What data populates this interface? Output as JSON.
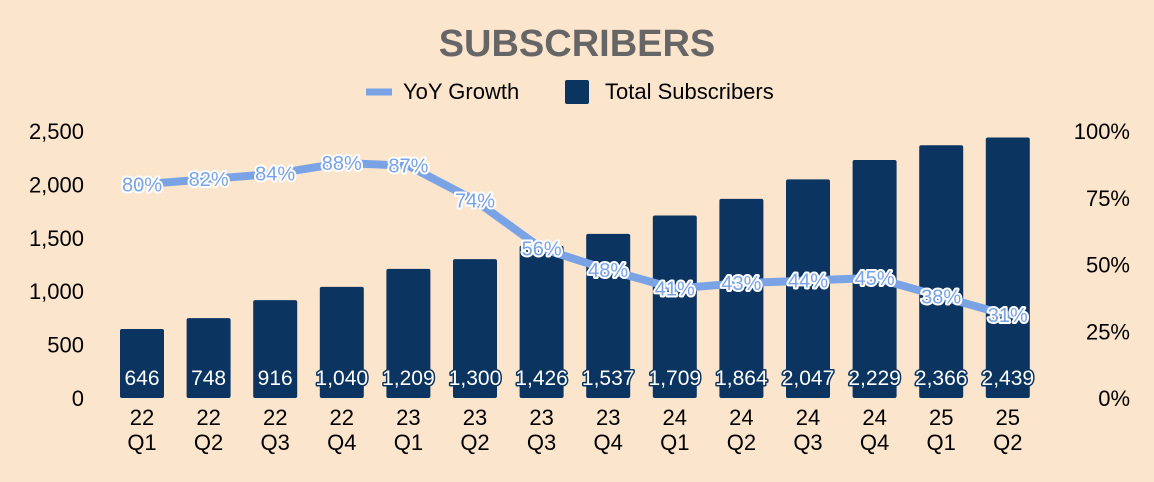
{
  "chart_data": {
    "type": "bar",
    "title": "SUBSCRIBERS",
    "categories": [
      [
        "22",
        "Q1"
      ],
      [
        "22",
        "Q2"
      ],
      [
        "22",
        "Q3"
      ],
      [
        "22",
        "Q4"
      ],
      [
        "23",
        "Q1"
      ],
      [
        "23",
        "Q2"
      ],
      [
        "23",
        "Q3"
      ],
      [
        "23",
        "Q4"
      ],
      [
        "24",
        "Q1"
      ],
      [
        "24",
        "Q2"
      ],
      [
        "24",
        "Q3"
      ],
      [
        "24",
        "Q4"
      ],
      [
        "25",
        "Q1"
      ],
      [
        "25",
        "Q2"
      ]
    ],
    "series": [
      {
        "name": "Total Subscribers",
        "type": "bar",
        "axis": "left",
        "color": "#0b3460",
        "values": [
          646,
          748,
          916,
          1040,
          1209,
          1300,
          1426,
          1537,
          1709,
          1864,
          2047,
          2229,
          2366,
          2439
        ],
        "labels": [
          "646",
          "748",
          "916",
          "1,040",
          "1,209",
          "1,300",
          "1,426",
          "1,537",
          "1,709",
          "1,864",
          "2,047",
          "2,229",
          "2,366",
          "2,439"
        ]
      },
      {
        "name": "YoY Growth",
        "type": "line",
        "axis": "right",
        "color": "#7aa3e6",
        "values": [
          80,
          82,
          84,
          88,
          87,
          74,
          56,
          48,
          41,
          43,
          44,
          45,
          38,
          31
        ],
        "labels": [
          "80%",
          "82%",
          "84%",
          "88%",
          "87%",
          "74%",
          "56%",
          "48%",
          "41%",
          "43%",
          "44%",
          "45%",
          "38%",
          "31%"
        ]
      }
    ],
    "y_left": {
      "ylim": [
        0,
        2500
      ],
      "ticks": [
        "0",
        "500",
        "1,000",
        "1,500",
        "2,000",
        "2,500"
      ],
      "tick_values": [
        0,
        500,
        1000,
        1500,
        2000,
        2500
      ]
    },
    "y_right": {
      "ylim": [
        0,
        100
      ],
      "ticks": [
        "0%",
        "25%",
        "50%",
        "75%",
        "100%"
      ],
      "tick_values": [
        0,
        25,
        50,
        75,
        100
      ]
    },
    "legend": {
      "position": "top",
      "items": [
        "YoY Growth",
        "Total Subscribers"
      ]
    },
    "grid": false,
    "background": "#fce5cd"
  }
}
